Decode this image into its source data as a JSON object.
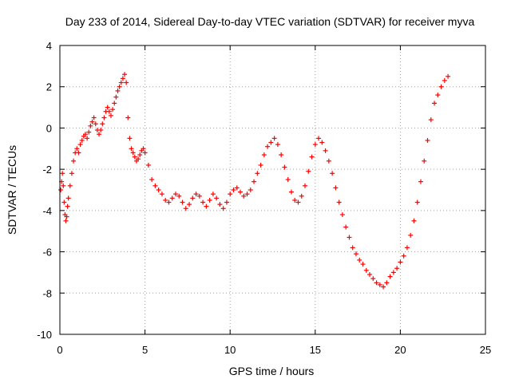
{
  "chart_data": {
    "type": "scatter",
    "title": "Day 233 of 2014, Sidereal Day-to-day VTEC variation (SDTVAR) for receiver myva",
    "xlabel": "GPS time / hours",
    "ylabel": "SDTVAR / TECUs",
    "xlim": [
      0,
      25
    ],
    "ylim": [
      -10,
      4
    ],
    "xticks": [
      0,
      5,
      10,
      15,
      20,
      25
    ],
    "yticks": [
      -10,
      -8,
      -6,
      -4,
      -2,
      0,
      2,
      4
    ],
    "grid": true,
    "marker": "+",
    "color": "#ff0000",
    "series": [
      {
        "name": "SDTVAR",
        "x": [
          0.05,
          0.1,
          0.15,
          0.2,
          0.25,
          0.3,
          0.35,
          0.4,
          0.45,
          0.5,
          0.6,
          0.7,
          0.8,
          0.9,
          1.0,
          1.1,
          1.2,
          1.3,
          1.4,
          1.5,
          1.6,
          1.7,
          1.8,
          1.9,
          2.0,
          2.1,
          2.2,
          2.3,
          2.4,
          2.5,
          2.6,
          2.7,
          2.8,
          2.9,
          3.0,
          3.1,
          3.2,
          3.3,
          3.4,
          3.5,
          3.6,
          3.7,
          3.8,
          3.9,
          4.0,
          4.1,
          4.2,
          4.3,
          4.4,
          4.5,
          4.6,
          4.7,
          4.8,
          4.9,
          5.0,
          5.2,
          5.4,
          5.6,
          5.8,
          6.0,
          6.2,
          6.4,
          6.6,
          6.8,
          7.0,
          7.2,
          7.4,
          7.6,
          7.8,
          8.0,
          8.2,
          8.4,
          8.6,
          8.8,
          9.0,
          9.2,
          9.4,
          9.6,
          9.8,
          10.0,
          10.2,
          10.4,
          10.6,
          10.8,
          11.0,
          11.2,
          11.4,
          11.6,
          11.8,
          12.0,
          12.2,
          12.4,
          12.6,
          12.8,
          13.0,
          13.2,
          13.4,
          13.6,
          13.8,
          14.0,
          14.2,
          14.4,
          14.6,
          14.8,
          15.0,
          15.2,
          15.4,
          15.6,
          15.8,
          16.0,
          16.2,
          16.4,
          16.6,
          16.8,
          17.0,
          17.2,
          17.4,
          17.6,
          17.8,
          18.0,
          18.2,
          18.4,
          18.6,
          18.8,
          19.0,
          19.2,
          19.4,
          19.6,
          19.8,
          20.0,
          20.2,
          20.4,
          20.6,
          20.8,
          21.0,
          21.2,
          21.4,
          21.6,
          21.8,
          22.0,
          22.2,
          22.4,
          22.6,
          22.8
        ],
        "y": [
          -3.0,
          -2.6,
          -2.2,
          -2.8,
          -3.6,
          -4.2,
          -4.5,
          -4.3,
          -3.8,
          -3.4,
          -2.8,
          -2.2,
          -1.6,
          -1.2,
          -1.0,
          -1.2,
          -0.8,
          -0.6,
          -0.4,
          -0.3,
          -0.5,
          -0.2,
          0.1,
          0.3,
          0.5,
          0.2,
          -0.1,
          -0.3,
          -0.1,
          0.2,
          0.5,
          0.8,
          1.0,
          0.8,
          0.6,
          0.9,
          1.2,
          1.5,
          1.8,
          2.0,
          2.2,
          2.4,
          2.6,
          2.2,
          0.5,
          -0.5,
          -1.0,
          -1.2,
          -1.4,
          -1.6,
          -1.5,
          -1.3,
          -1.1,
          -1.0,
          -1.2,
          -1.8,
          -2.5,
          -2.8,
          -3.0,
          -3.2,
          -3.5,
          -3.6,
          -3.4,
          -3.2,
          -3.3,
          -3.6,
          -3.9,
          -3.7,
          -3.4,
          -3.2,
          -3.3,
          -3.6,
          -3.8,
          -3.5,
          -3.2,
          -3.4,
          -3.7,
          -3.9,
          -3.6,
          -3.2,
          -3.0,
          -2.9,
          -3.1,
          -3.3,
          -3.2,
          -3.0,
          -2.6,
          -2.2,
          -1.8,
          -1.3,
          -0.9,
          -0.7,
          -0.5,
          -0.8,
          -1.3,
          -1.9,
          -2.5,
          -3.1,
          -3.5,
          -3.6,
          -3.3,
          -2.8,
          -2.1,
          -1.4,
          -0.8,
          -0.5,
          -0.7,
          -1.1,
          -1.6,
          -2.2,
          -2.9,
          -3.6,
          -4.2,
          -4.8,
          -5.3,
          -5.8,
          -6.1,
          -6.4,
          -6.6,
          -6.9,
          -7.1,
          -7.3,
          -7.5,
          -7.6,
          -7.7,
          -7.5,
          -7.2,
          -7.0,
          -6.8,
          -6.5,
          -6.2,
          -5.8,
          -5.2,
          -4.5,
          -3.6,
          -2.6,
          -1.6,
          -0.6,
          0.4,
          1.2,
          1.6,
          2.0,
          2.3,
          2.5
        ]
      }
    ]
  }
}
